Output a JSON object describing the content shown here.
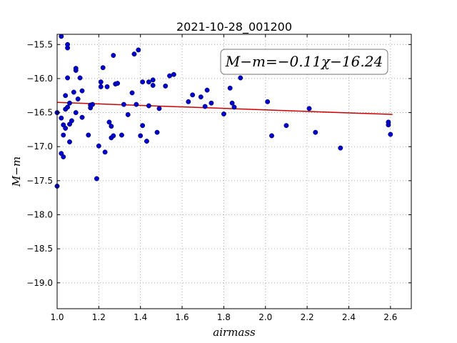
{
  "chart_data": {
    "type": "scatter",
    "title": "2021-10-28_001200",
    "xlabel": "airmass",
    "ylabel": "M−m",
    "xlim": [
      1.0,
      2.7
    ],
    "ylim": [
      -15.35,
      -19.38
    ],
    "y_inverted": true,
    "grid": true,
    "xticks": [
      1.0,
      1.2,
      1.4,
      1.6,
      1.8,
      2.0,
      2.2,
      2.4,
      2.6
    ],
    "xtick_labels": [
      "1.0",
      "1.2",
      "1.4",
      "1.6",
      "1.8",
      "2.0",
      "2.2",
      "2.4",
      "2.6"
    ],
    "yticks": [
      -15.5,
      -16.0,
      -16.5,
      -17.0,
      -17.5,
      -18.0,
      -18.5,
      -19.0
    ],
    "ytick_labels": [
      "−15.5",
      "−16.0",
      "−16.5",
      "−17.0",
      "−17.5",
      "−18.0",
      "−18.5",
      "−19.0"
    ],
    "annotation": "M−m=−0.11χ−16.24",
    "point_color": "#0000cc",
    "fit_color": "#cc0000",
    "fit": {
      "slope": -0.11,
      "intercept": -16.24,
      "x_range": [
        1.0,
        2.61
      ]
    },
    "points": [
      [
        1.0,
        -16.5
      ],
      [
        1.0,
        -17.58
      ],
      [
        1.02,
        -15.38
      ],
      [
        1.02,
        -16.58
      ],
      [
        1.02,
        -17.1
      ],
      [
        1.03,
        -17.15
      ],
      [
        1.03,
        -16.83
      ],
      [
        1.03,
        -16.68
      ],
      [
        1.04,
        -16.73
      ],
      [
        1.04,
        -16.45
      ],
      [
        1.04,
        -16.25
      ],
      [
        1.05,
        -15.55
      ],
      [
        1.05,
        -15.5
      ],
      [
        1.05,
        -15.99
      ],
      [
        1.05,
        -16.42
      ],
      [
        1.06,
        -16.67
      ],
      [
        1.06,
        -16.93
      ],
      [
        1.06,
        -16.36
      ],
      [
        1.07,
        -16.62
      ],
      [
        1.08,
        -16.2
      ],
      [
        1.09,
        -15.88
      ],
      [
        1.09,
        -15.85
      ],
      [
        1.09,
        -16.5
      ],
      [
        1.1,
        -16.3
      ],
      [
        1.11,
        -15.99
      ],
      [
        1.12,
        -16.18
      ],
      [
        1.12,
        -16.57
      ],
      [
        1.15,
        -16.83
      ],
      [
        1.16,
        -16.43
      ],
      [
        1.16,
        -16.39
      ],
      [
        1.17,
        -16.38
      ],
      [
        1.19,
        -17.47
      ],
      [
        1.2,
        -16.99
      ],
      [
        1.21,
        -16.05
      ],
      [
        1.21,
        -16.12
      ],
      [
        1.22,
        -15.84
      ],
      [
        1.23,
        -17.08
      ],
      [
        1.24,
        -16.12
      ],
      [
        1.25,
        -16.64
      ],
      [
        1.26,
        -16.7
      ],
      [
        1.26,
        -16.87
      ],
      [
        1.27,
        -16.84
      ],
      [
        1.27,
        -15.66
      ],
      [
        1.28,
        -16.08
      ],
      [
        1.29,
        -16.07
      ],
      [
        1.31,
        -16.83
      ],
      [
        1.32,
        -16.38
      ],
      [
        1.34,
        -16.53
      ],
      [
        1.36,
        -16.21
      ],
      [
        1.37,
        -15.64
      ],
      [
        1.38,
        -16.38
      ],
      [
        1.39,
        -15.58
      ],
      [
        1.4,
        -16.84
      ],
      [
        1.41,
        -16.69
      ],
      [
        1.41,
        -16.05
      ],
      [
        1.43,
        -16.92
      ],
      [
        1.44,
        -16.05
      ],
      [
        1.44,
        -16.4
      ],
      [
        1.46,
        -16.02
      ],
      [
        1.46,
        -16.1
      ],
      [
        1.48,
        -16.79
      ],
      [
        1.49,
        -16.44
      ],
      [
        1.52,
        -16.11
      ],
      [
        1.54,
        -15.96
      ],
      [
        1.56,
        -15.94
      ],
      [
        1.63,
        -16.34
      ],
      [
        1.65,
        -16.24
      ],
      [
        1.69,
        -16.27
      ],
      [
        1.71,
        -16.41
      ],
      [
        1.72,
        -16.17
      ],
      [
        1.74,
        -16.36
      ],
      [
        1.8,
        -16.52
      ],
      [
        1.83,
        -16.14
      ],
      [
        1.84,
        -16.36
      ],
      [
        1.85,
        -16.42
      ],
      [
        1.88,
        -15.99
      ],
      [
        2.01,
        -16.34
      ],
      [
        2.03,
        -16.84
      ],
      [
        2.1,
        -16.69
      ],
      [
        2.21,
        -16.44
      ],
      [
        2.24,
        -16.79
      ],
      [
        2.36,
        -17.02
      ],
      [
        2.59,
        -16.68
      ],
      [
        2.59,
        -16.64
      ],
      [
        2.6,
        -16.82
      ]
    ]
  }
}
